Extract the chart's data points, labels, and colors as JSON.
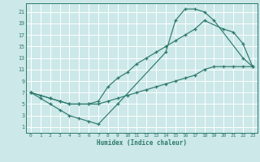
{
  "xlabel": "Humidex (Indice chaleur)",
  "background_color": "#cce8e8",
  "grid_color": "#ffffff",
  "line_color": "#2d7a6e",
  "xlim": [
    -0.5,
    23.5
  ],
  "ylim": [
    0,
    22.5
  ],
  "xticks": [
    0,
    1,
    2,
    3,
    4,
    5,
    6,
    7,
    8,
    9,
    10,
    11,
    12,
    13,
    14,
    15,
    16,
    17,
    18,
    19,
    20,
    21,
    22,
    23
  ],
  "yticks": [
    1,
    3,
    5,
    7,
    9,
    11,
    13,
    15,
    17,
    19,
    21
  ],
  "curve1_x": [
    0,
    1,
    2,
    3,
    4,
    5,
    6,
    7,
    9,
    14,
    15,
    16,
    17,
    18,
    19,
    22,
    23
  ],
  "curve1_y": [
    7,
    6,
    5,
    4,
    3,
    2.5,
    2,
    1.5,
    5,
    14,
    19.5,
    21.5,
    21.5,
    21,
    19.5,
    13,
    11.5
  ],
  "curve2_x": [
    0,
    2,
    3,
    4,
    5,
    6,
    7,
    8,
    9,
    10,
    11,
    12,
    13,
    14,
    15,
    16,
    17,
    18,
    20,
    21,
    22,
    23
  ],
  "curve2_y": [
    7,
    6,
    5.5,
    5,
    5,
    5,
    5.5,
    8,
    9.5,
    10.5,
    12,
    13,
    14,
    15,
    16,
    17,
    18,
    19.5,
    18,
    17.5,
    15.5,
    11.5
  ],
  "curve3_x": [
    0,
    1,
    2,
    3,
    4,
    5,
    6,
    7,
    8,
    9,
    10,
    11,
    12,
    13,
    14,
    15,
    16,
    17,
    18,
    19,
    20,
    21,
    22,
    23
  ],
  "curve3_y": [
    7,
    6.5,
    6,
    5.5,
    5,
    5,
    5,
    5,
    5.5,
    6,
    6.5,
    7,
    7.5,
    8,
    8.5,
    9,
    9.5,
    10,
    11,
    11.5,
    11.5,
    11.5,
    11.5,
    11.5
  ]
}
